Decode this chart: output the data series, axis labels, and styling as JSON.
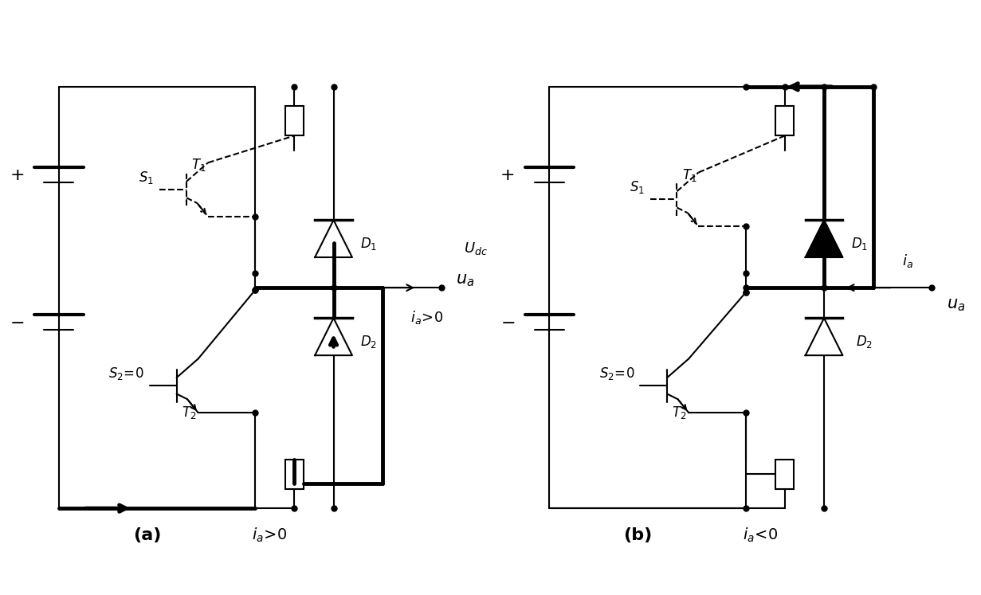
{
  "bg_color": "#ffffff",
  "line_color": "#000000",
  "lw_thin": 1.5,
  "lw_thick": 3.5,
  "dot_r": 5,
  "fig_width": 12.31,
  "fig_height": 7.47,
  "dpi": 100
}
